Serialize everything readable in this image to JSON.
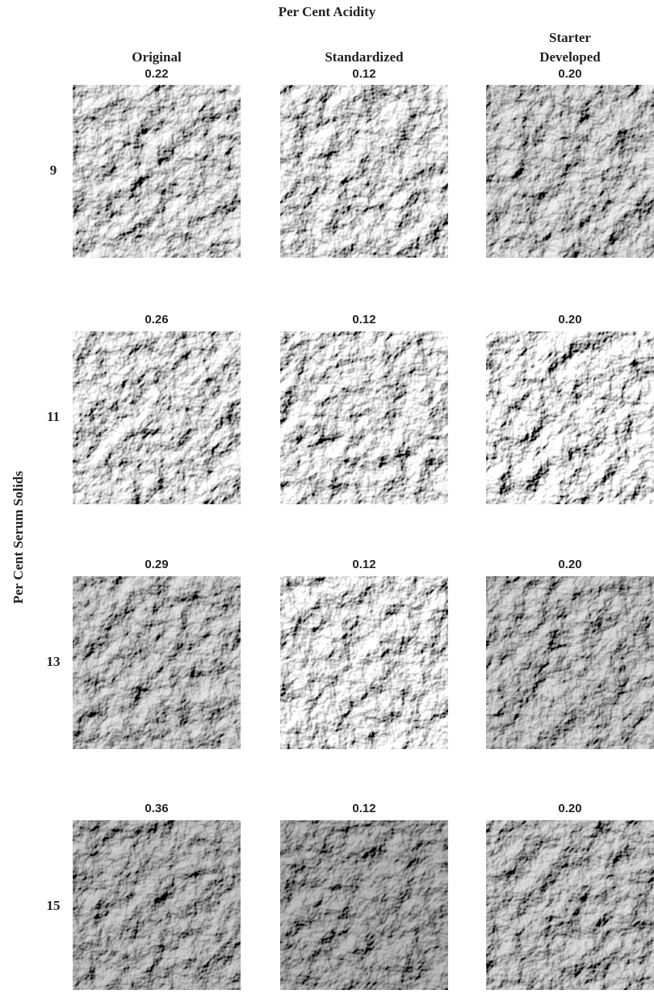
{
  "title": "Per Cent Acidity",
  "y_label": "Per Cent Serum Solids",
  "columns": [
    [
      "Original"
    ],
    [
      "Standardized"
    ],
    [
      "Starter",
      "Developed"
    ]
  ],
  "rows": [
    {
      "label": "9",
      "acidity": [
        "0.22",
        "0.12",
        "0.20"
      ]
    },
    {
      "label": "11",
      "acidity": [
        "0.26",
        "0.12",
        "0.20"
      ]
    },
    {
      "label": "13",
      "acidity": [
        "0.29",
        "0.12",
        "0.20"
      ]
    },
    {
      "label": "15",
      "acidity": [
        "0.36",
        "0.12",
        "0.20"
      ]
    }
  ]
}
